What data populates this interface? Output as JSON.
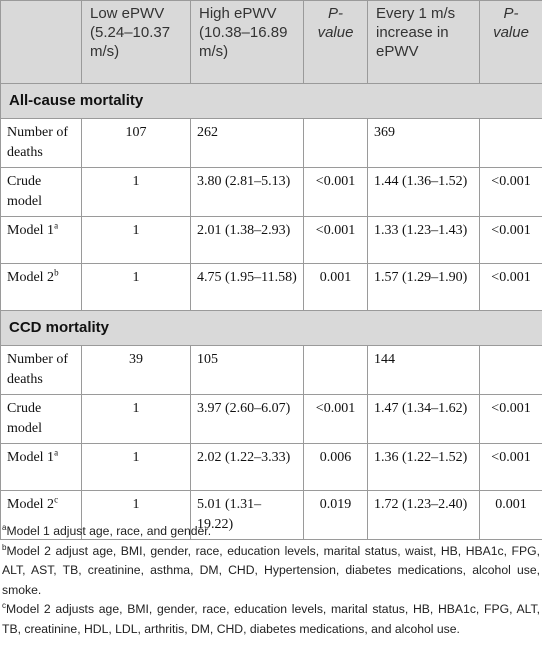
{
  "header": {
    "col0": "",
    "col1": "Low ePWV (5.24–10.37 m/s)",
    "col2": "High ePWV (10.38–16.89 m/s)",
    "col3": "P-value",
    "col4": "Every 1 m/s increase in ePWV",
    "col5": "P-value"
  },
  "sections": [
    {
      "title": "All-cause mortality",
      "rows": [
        {
          "label": "Number of deaths",
          "sup": "",
          "low": "107",
          "high": "262",
          "p1": "",
          "every": "369",
          "p2": ""
        },
        {
          "label": "Crude model",
          "sup": "",
          "low": "1",
          "high": "3.80 (2.81–5.13)",
          "p1": "<0.001",
          "every": "1.44 (1.36–1.52)",
          "p2": "<0.001"
        },
        {
          "label": "Model 1",
          "sup": "a",
          "low": "1",
          "high": "2.01 (1.38–2.93)",
          "p1": "<0.001",
          "every": "1.33 (1.23–1.43)",
          "p2": "<0.001"
        },
        {
          "label": "Model 2",
          "sup": "b",
          "low": "1",
          "high": "4.75 (1.95–11.58)",
          "p1": "0.001",
          "every": "1.57 (1.29–1.90)",
          "p2": "<0.001"
        }
      ]
    },
    {
      "title": "CCD mortality",
      "rows": [
        {
          "label": "Number of deaths",
          "sup": "",
          "low": "39",
          "high": "105",
          "p1": "",
          "every": "144",
          "p2": ""
        },
        {
          "label": "Crude model",
          "sup": "",
          "low": "1",
          "high": "3.97 (2.60–6.07)",
          "p1": "<0.001",
          "every": "1.47 (1.34–1.62)",
          "p2": "<0.001"
        },
        {
          "label": "Model 1",
          "sup": "a",
          "low": "1",
          "high": "2.02 (1.22–3.33)",
          "p1": "0.006",
          "every": "1.36 (1.22–1.52)",
          "p2": "<0.001"
        },
        {
          "label": "Model 2",
          "sup": "c",
          "low": "1",
          "high": "5.01 (1.31–19.22)",
          "p1": "0.019",
          "every": "1.72 (1.23–2.40)",
          "p2": "0.001"
        }
      ]
    }
  ],
  "footnotes": [
    {
      "mark": "a",
      "text": "Model 1 adjust age, race, and gender."
    },
    {
      "mark": "b",
      "text": "Model 2 adjust age, BMI, gender, race, education levels, marital status, waist, HB, HBA1c, FPG, ALT, AST, TB, creatinine, asthma, DM, CHD, Hypertension, diabetes medications, alcohol use, smoke."
    },
    {
      "mark": "c",
      "text": "Model 2 adjusts age, BMI, gender, race, education levels, marital status, HB, HBA1c, FPG, ALT, TB, creatinine, HDL, LDL, arthritis, DM, CHD, diabetes medications, and alcohol use."
    }
  ]
}
